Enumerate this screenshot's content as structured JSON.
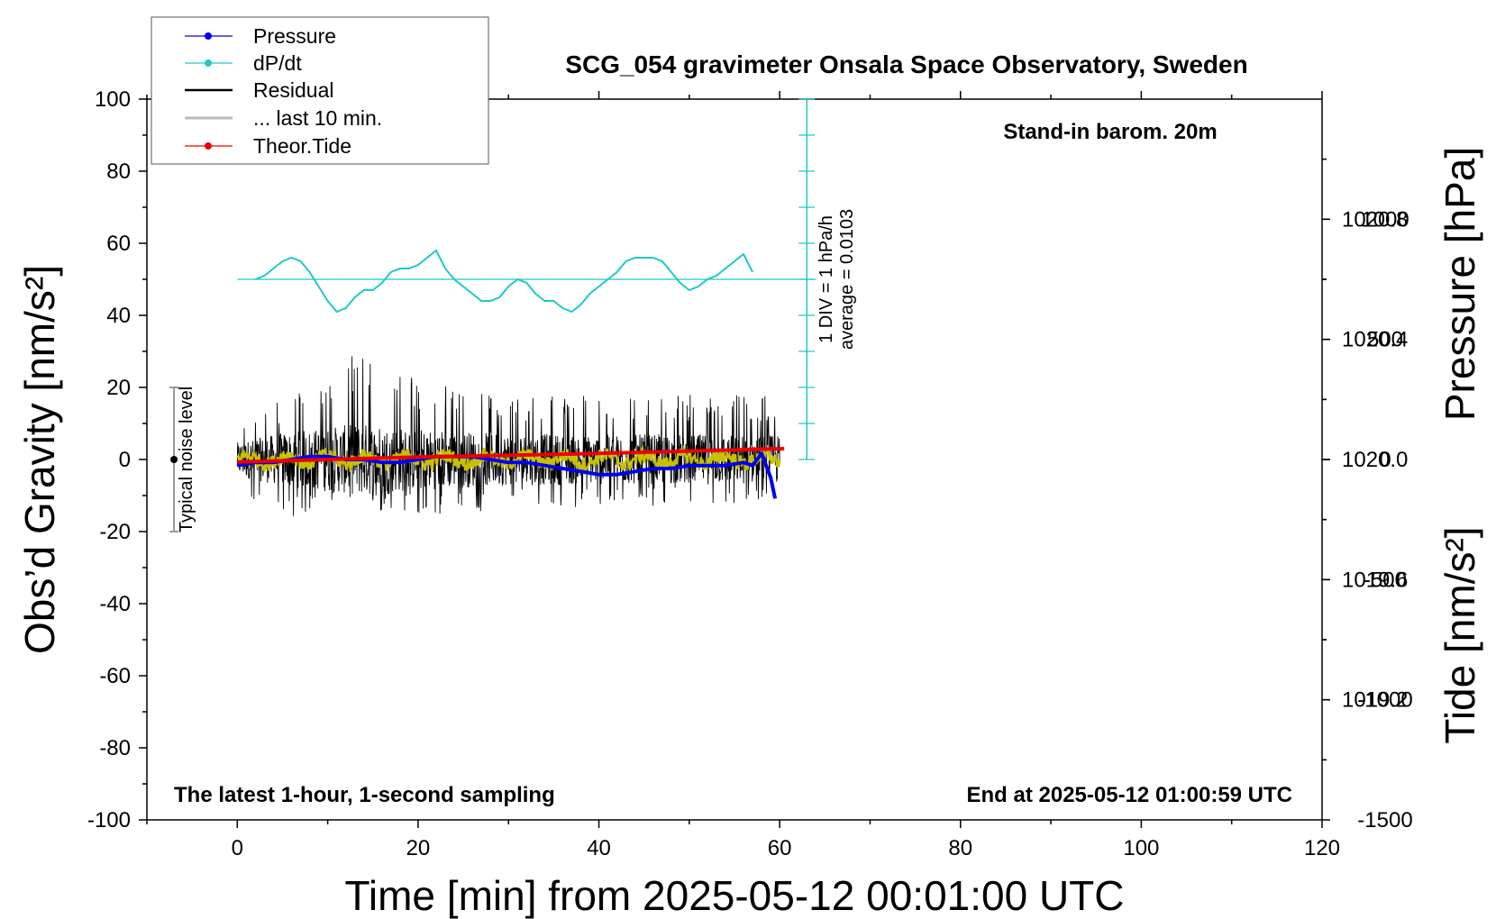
{
  "chart_data": {
    "type": "line",
    "title": "SCG_054 gravimeter Onsala Space Observatory, Sweden",
    "xlabel": "Time [min] from 2025-05-12 00:01:00 UTC",
    "ylabel_left": "Obs’d Gravity [nm/s²]",
    "ylabel_right_top": "Pressure [hPa]",
    "ylabel_right_bottom": "Tide [nm/s²]",
    "xlim": [
      -10,
      120
    ],
    "ylim_left": [
      -100,
      100
    ],
    "pressure_ylim": [
      1018.8,
      1021.2
    ],
    "tide_ylim": [
      -1500,
      1500
    ],
    "x_ticks": [
      0,
      20,
      40,
      60,
      80,
      100,
      120
    ],
    "y_ticks_left": [
      100,
      80,
      60,
      40,
      20,
      0,
      -20,
      -40,
      -60,
      -80,
      -100
    ],
    "y_ticks_left_labels": [
      "100",
      "80",
      "60",
      "40",
      "20",
      "0",
      "-20",
      "-40",
      "-60",
      "-80",
      "-100"
    ],
    "pressure_ticks": [
      "1020.8",
      "1020.4",
      "1020.0",
      "1019.6",
      "1019.2"
    ],
    "pressure_tick_values": [
      1020.8,
      1020.4,
      1020.0,
      1019.6,
      1019.2
    ],
    "tide_ticks": [
      "1000",
      "500",
      "0",
      "-500",
      "-1000",
      "-1500"
    ],
    "tide_tick_values": [
      1000,
      500,
      0,
      -500,
      -1000,
      -1500
    ],
    "legend": [
      {
        "name": "Pressure",
        "color": "#0000ee",
        "marker": "dot"
      },
      {
        "name": "dP/dt",
        "color": "#20c8c8",
        "marker": "dot"
      },
      {
        "name": "Residual",
        "color": "#000000",
        "marker": "none"
      },
      {
        "name": "... last 10 min.",
        "color": "#bbbbbb",
        "marker": "none"
      },
      {
        "name": "Theor.Tide",
        "color": "#ee0000",
        "marker": "dot"
      }
    ],
    "annotations": {
      "barometer": "Stand-in barom. 20m",
      "sampling": "The latest 1-hour, 1-second sampling",
      "end_time": "End at 2025-05-12 01:00:59 UTC",
      "noise": "Typical noise level",
      "dpdt_scale": "1 DIV = 1 hPa/h",
      "dpdt_average": "average = 0.0103"
    },
    "noise_level": {
      "x": -7,
      "center": 0,
      "half_range": 20
    },
    "dpdt_scale_axis": {
      "x": 63,
      "y_top": 100,
      "y_bottom": 0,
      "baseline": 50,
      "tick_spacing_y": 10
    },
    "series": [
      {
        "name": "Pressure",
        "axis": "pressure",
        "x": [
          0,
          2,
          4,
          6,
          8,
          10,
          12,
          14,
          16,
          18,
          20,
          22,
          24,
          26,
          28,
          30,
          32,
          34,
          36,
          38,
          40,
          42,
          44,
          46,
          48,
          50,
          52,
          54,
          56,
          57,
          58,
          59,
          59.5
        ],
        "values": [
          1019.98,
          1019.99,
          1019.99,
          1020.0,
          1020.01,
          1020.01,
          1020.0,
          1020.0,
          1019.99,
          1019.99,
          1020.0,
          1020.01,
          1020.01,
          1020.01,
          1020.0,
          1019.99,
          1019.99,
          1019.98,
          1019.97,
          1019.96,
          1019.95,
          1019.95,
          1019.96,
          1019.97,
          1019.97,
          1019.98,
          1019.98,
          1019.98,
          1019.99,
          1019.98,
          1020.02,
          1019.94,
          1019.87
        ]
      },
      {
        "name": "dP/dt",
        "axis": "left",
        "x": [
          2,
          3,
          4,
          5,
          6,
          7,
          8,
          9,
          10,
          11,
          12,
          13,
          14,
          15,
          16,
          17,
          18,
          19,
          20,
          21,
          22,
          23,
          24,
          25,
          26,
          27,
          28,
          29,
          30,
          31,
          32,
          33,
          34,
          35,
          36,
          37,
          38,
          39,
          40,
          41,
          42,
          43,
          44,
          45,
          46,
          47,
          48,
          49,
          50,
          51,
          52,
          53,
          54,
          55,
          56,
          57
        ],
        "values": [
          50,
          51,
          53,
          55,
          56,
          55,
          52,
          48,
          44,
          41,
          42,
          45,
          47,
          47,
          49,
          52,
          53,
          53,
          54,
          56,
          58,
          53,
          50,
          48,
          46,
          44,
          44,
          45,
          48,
          50,
          49,
          46,
          44,
          44,
          42,
          41,
          43,
          46,
          48,
          50,
          52,
          55,
          56,
          56,
          56,
          55,
          52,
          49,
          47,
          48,
          50,
          51,
          53,
          55,
          57,
          52
        ]
      },
      {
        "name": "Residual",
        "axis": "left",
        "x_range": [
          0,
          60
        ],
        "envelope": [
          {
            "x": 0,
            "min": -11,
            "max": 10
          },
          {
            "x": 5,
            "min": -16,
            "max": 17
          },
          {
            "x": 10,
            "min": -15,
            "max": 25
          },
          {
            "x": 14,
            "min": -14,
            "max": 31
          },
          {
            "x": 20,
            "min": -16,
            "max": 22
          },
          {
            "x": 30,
            "min": -14,
            "max": 18
          },
          {
            "x": 40,
            "min": -13,
            "max": 18
          },
          {
            "x": 50,
            "min": -13,
            "max": 18
          },
          {
            "x": 60,
            "min": -12,
            "max": 18
          }
        ]
      },
      {
        "name": "Residual (smoothed)",
        "axis": "left",
        "color": "#c8c000",
        "x_range": [
          0,
          60
        ],
        "mean": 0,
        "amplitude": 2
      },
      {
        "name": "Theor.Tide",
        "axis": "tide",
        "x": [
          0,
          20,
          40,
          60.5
        ],
        "values": [
          -10,
          10,
          25,
          45
        ]
      }
    ]
  }
}
